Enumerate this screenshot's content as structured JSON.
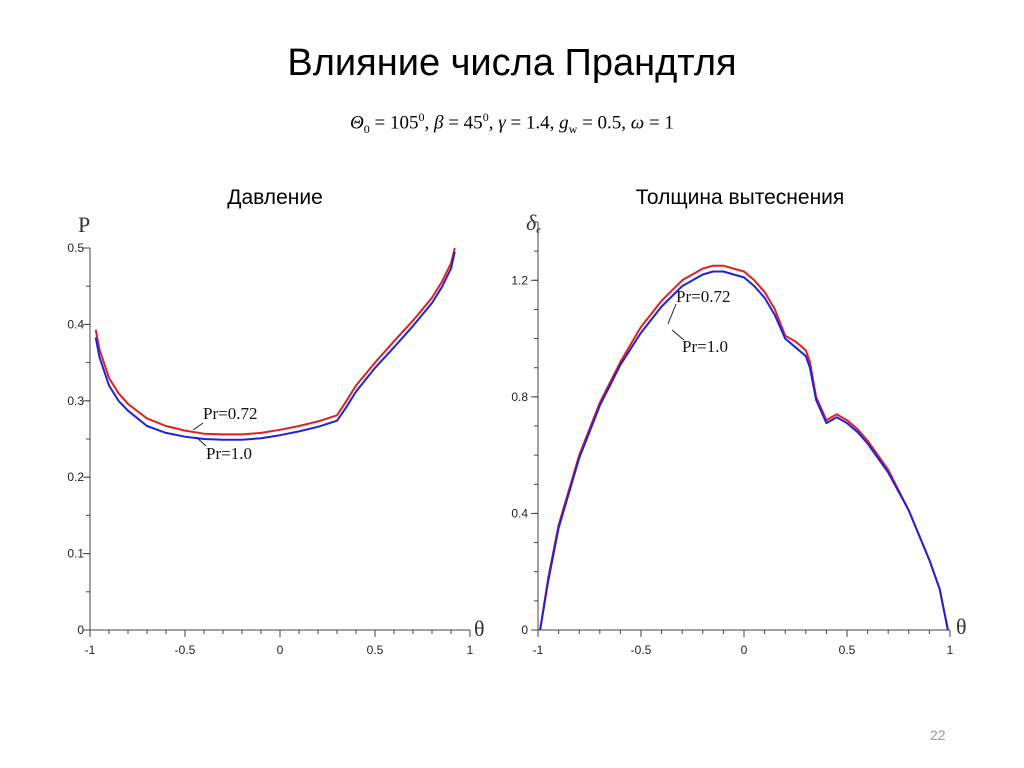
{
  "slide": {
    "title": "Влияние числа Прандтля",
    "params": {
      "theta_sym": "Θ",
      "theta_sub": "0",
      "theta_val": " = 105",
      "theta_sup": "0",
      "beta_sym": "β",
      "beta_val": " = 45",
      "beta_sup": "0",
      "gamma_sym": "γ",
      "gamma_val": " = 1.4, ",
      "g_sym": "g",
      "g_sub": "w",
      "g_val": " = 0.5, ",
      "omega_sym": "ω",
      "omega_val": " = 1"
    },
    "page_number": "22"
  },
  "colors": {
    "red": "#e02020",
    "blue": "#2020e0",
    "axis": "#444444"
  },
  "chart_data": [
    {
      "type": "line",
      "title": "Давление",
      "ylabel": "P",
      "xlabel": "θ",
      "xlim": [
        -1,
        1
      ],
      "ylim": [
        0,
        0.5
      ],
      "xticks": [
        "-1",
        "-0.5",
        "0",
        "0.5",
        "1"
      ],
      "yticks": [
        "0",
        "0.1",
        "0.2",
        "0.3",
        "0.4",
        "0.5"
      ],
      "series": [
        {
          "name": "Pr=0.72",
          "color": "#e02020",
          "x": [
            -0.97,
            -0.95,
            -0.9,
            -0.85,
            -0.8,
            -0.7,
            -0.6,
            -0.5,
            -0.4,
            -0.3,
            -0.2,
            -0.1,
            0,
            0.1,
            0.2,
            0.3,
            0.35,
            0.4,
            0.5,
            0.6,
            0.7,
            0.8,
            0.85,
            0.9,
            0.92
          ],
          "y": [
            0.393,
            0.367,
            0.33,
            0.31,
            0.296,
            0.277,
            0.267,
            0.261,
            0.257,
            0.256,
            0.256,
            0.258,
            0.262,
            0.267,
            0.273,
            0.281,
            0.3,
            0.32,
            0.35,
            0.378,
            0.405,
            0.435,
            0.455,
            0.48,
            0.5
          ]
        },
        {
          "name": "Pr=1.0",
          "color": "#2020e0",
          "x": [
            -0.97,
            -0.95,
            -0.9,
            -0.85,
            -0.8,
            -0.7,
            -0.6,
            -0.5,
            -0.4,
            -0.3,
            -0.2,
            -0.1,
            0,
            0.1,
            0.2,
            0.3,
            0.35,
            0.4,
            0.5,
            0.6,
            0.7,
            0.8,
            0.85,
            0.9,
            0.92
          ],
          "y": [
            0.383,
            0.357,
            0.32,
            0.3,
            0.287,
            0.267,
            0.258,
            0.253,
            0.25,
            0.249,
            0.249,
            0.251,
            0.255,
            0.26,
            0.266,
            0.274,
            0.292,
            0.312,
            0.343,
            0.37,
            0.398,
            0.428,
            0.448,
            0.473,
            0.495
          ]
        }
      ],
      "annotations": [
        "Pr=0.72",
        "Pr=1.0"
      ]
    },
    {
      "type": "line",
      "title": "Толщина вытеснения",
      "ylabel": "δe",
      "xlabel": "θ",
      "xlim": [
        -1,
        1
      ],
      "ylim": [
        0,
        1.4
      ],
      "xticks": [
        "-1",
        "-0.5",
        "0",
        "0.5",
        "1"
      ],
      "yticks": [
        "0",
        "0.4",
        "0.8",
        "1.2"
      ],
      "series": [
        {
          "name": "Pr=0.72",
          "color": "#e02020",
          "x": [
            -0.99,
            -0.95,
            -0.9,
            -0.8,
            -0.7,
            -0.6,
            -0.5,
            -0.4,
            -0.3,
            -0.2,
            -0.15,
            -0.1,
            -0.05,
            0,
            0.05,
            0.1,
            0.15,
            0.2,
            0.25,
            0.3,
            0.32,
            0.35,
            0.4,
            0.45,
            0.5,
            0.55,
            0.6,
            0.7,
            0.8,
            0.9,
            0.95,
            0.99
          ],
          "y": [
            0.0,
            0.18,
            0.36,
            0.6,
            0.78,
            0.92,
            1.04,
            1.13,
            1.2,
            1.24,
            1.25,
            1.25,
            1.24,
            1.23,
            1.2,
            1.16,
            1.1,
            1.01,
            0.99,
            0.96,
            0.92,
            0.8,
            0.72,
            0.74,
            0.72,
            0.69,
            0.65,
            0.55,
            0.41,
            0.24,
            0.14,
            0.0
          ]
        },
        {
          "name": "Pr=1.0",
          "color": "#2020e0",
          "x": [
            -0.99,
            -0.95,
            -0.9,
            -0.8,
            -0.7,
            -0.6,
            -0.5,
            -0.4,
            -0.3,
            -0.2,
            -0.15,
            -0.1,
            -0.05,
            0,
            0.05,
            0.1,
            0.15,
            0.2,
            0.25,
            0.3,
            0.32,
            0.35,
            0.4,
            0.45,
            0.5,
            0.55,
            0.6,
            0.7,
            0.8,
            0.9,
            0.95,
            0.99
          ],
          "y": [
            0.0,
            0.17,
            0.35,
            0.59,
            0.77,
            0.91,
            1.02,
            1.11,
            1.18,
            1.22,
            1.23,
            1.23,
            1.22,
            1.21,
            1.18,
            1.14,
            1.08,
            1.0,
            0.97,
            0.94,
            0.9,
            0.79,
            0.71,
            0.73,
            0.71,
            0.68,
            0.64,
            0.54,
            0.41,
            0.24,
            0.14,
            0.0
          ]
        }
      ],
      "annotations": [
        "Pr=0.72",
        "Pr=1.0"
      ]
    }
  ]
}
